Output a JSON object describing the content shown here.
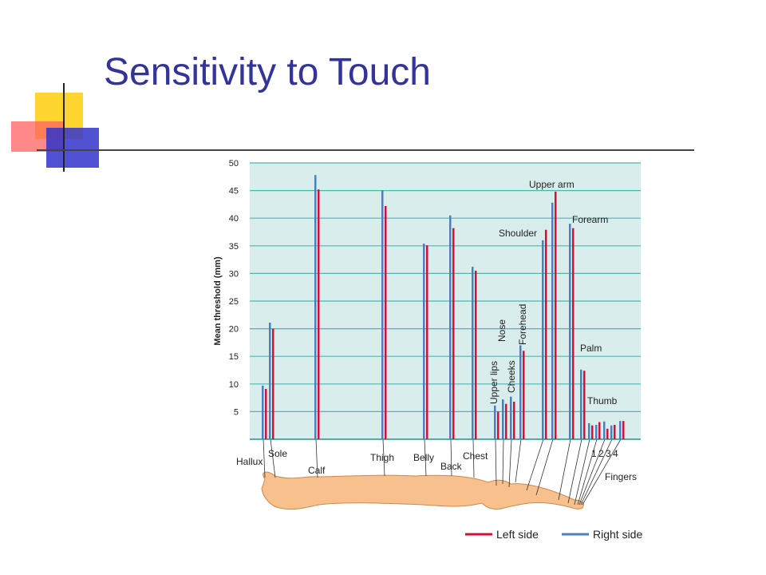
{
  "title": "Sensitivity to Touch",
  "chart_data": {
    "type": "bar",
    "y_label": "Mean threshold (mm)",
    "categories": [
      "Hallux",
      "Sole",
      "Calf",
      "Thigh",
      "Belly",
      "Back",
      "Chest",
      "Upper lips",
      "Nose",
      "Cheeks",
      "Forehead",
      "Shoulder",
      "Upper arm",
      "Forearm",
      "Palm",
      "Thumb",
      "1",
      "2",
      "3",
      "4"
    ],
    "series": [
      {
        "name": "Right side",
        "color": "#4a7fc0",
        "values": [
          9.7,
          21.1,
          47.8,
          45,
          35.4,
          40.5,
          31.2,
          6.1,
          7.2,
          7.7,
          17,
          36,
          42.8,
          39,
          12.6,
          2.9,
          2.6,
          3.2,
          2.5,
          3.3
        ]
      },
      {
        "name": "Left side",
        "color": "#d0103a",
        "values": [
          9.1,
          20,
          45.2,
          42.2,
          35.1,
          38.2,
          30.5,
          5,
          6.4,
          6.8,
          16,
          37.9,
          44.8,
          38.2,
          12.4,
          2.5,
          3.1,
          1.9,
          2.6,
          3.3
        ]
      }
    ],
    "annotations": [
      "Fingers"
    ],
    "ylim": [
      0,
      50
    ],
    "yticks": [
      5,
      10,
      15,
      20,
      25,
      30,
      35,
      40,
      45,
      50
    ],
    "grid": true
  }
}
